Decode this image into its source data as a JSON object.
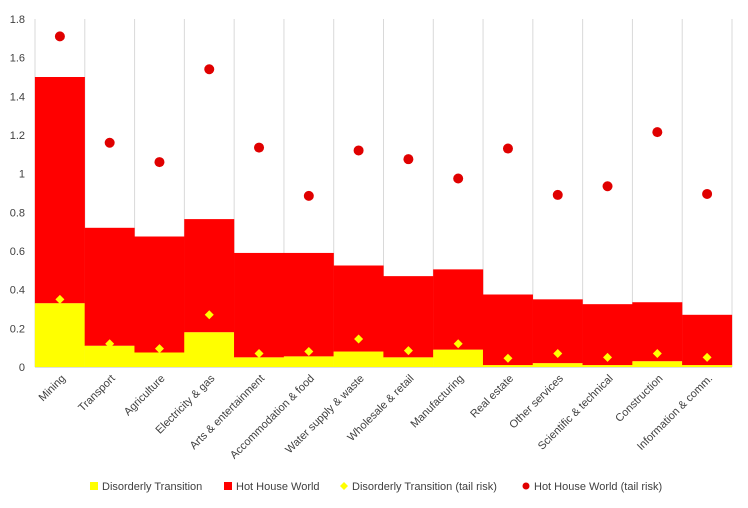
{
  "chart_data": {
    "type": "bar",
    "stacked": true,
    "title": "",
    "xlabel": "",
    "ylabel": "",
    "ylim": [
      0,
      1.8
    ],
    "yticks": [
      0,
      0.2,
      0.4,
      0.6,
      0.8,
      1,
      1.2,
      1.4,
      1.6,
      1.8
    ],
    "ytick_labels": [
      "0",
      "0.2",
      "0.4",
      "0.6",
      "0.8",
      "1",
      "1.2",
      "1.4",
      "1.6",
      "1.8"
    ],
    "grid": "vertical",
    "legend_position": "bottom",
    "categories": [
      "Mining",
      "Transport",
      "Agriculture",
      "Electricity & gas",
      "Arts & entertainment",
      "Accommodation & food",
      "Water supply & waste",
      "Wholesale & retail",
      "Manufacturing",
      "Real estate",
      "Other services",
      "Scientific & technical",
      "Construction",
      "Information & comm."
    ],
    "series": [
      {
        "name": "Disorderly Transition",
        "kind": "bar",
        "color": "#ffff00",
        "values": [
          0.33,
          0.11,
          0.075,
          0.18,
          0.05,
          0.055,
          0.08,
          0.05,
          0.09,
          0.01,
          0.02,
          0.01,
          0.03,
          0.01
        ]
      },
      {
        "name": "Hot House World",
        "kind": "bar",
        "color": "#ff0000",
        "values": [
          1.17,
          0.61,
          0.6,
          0.585,
          0.54,
          0.535,
          0.445,
          0.42,
          0.415,
          0.365,
          0.33,
          0.315,
          0.305,
          0.26
        ]
      },
      {
        "name": "Disorderly Transition (tail risk)",
        "kind": "marker",
        "marker": "diamond",
        "color": "#ffff00",
        "values": [
          0.35,
          0.12,
          0.095,
          0.27,
          0.07,
          0.08,
          0.145,
          0.085,
          0.12,
          0.045,
          0.07,
          0.05,
          0.07,
          0.05
        ]
      },
      {
        "name": "Hot House World (tail risk)",
        "kind": "marker",
        "marker": "circle",
        "color": "#e00000",
        "values": [
          1.71,
          1.16,
          1.06,
          1.54,
          1.135,
          0.885,
          1.12,
          1.075,
          0.975,
          1.13,
          0.89,
          0.935,
          1.215,
          0.895
        ]
      }
    ]
  }
}
